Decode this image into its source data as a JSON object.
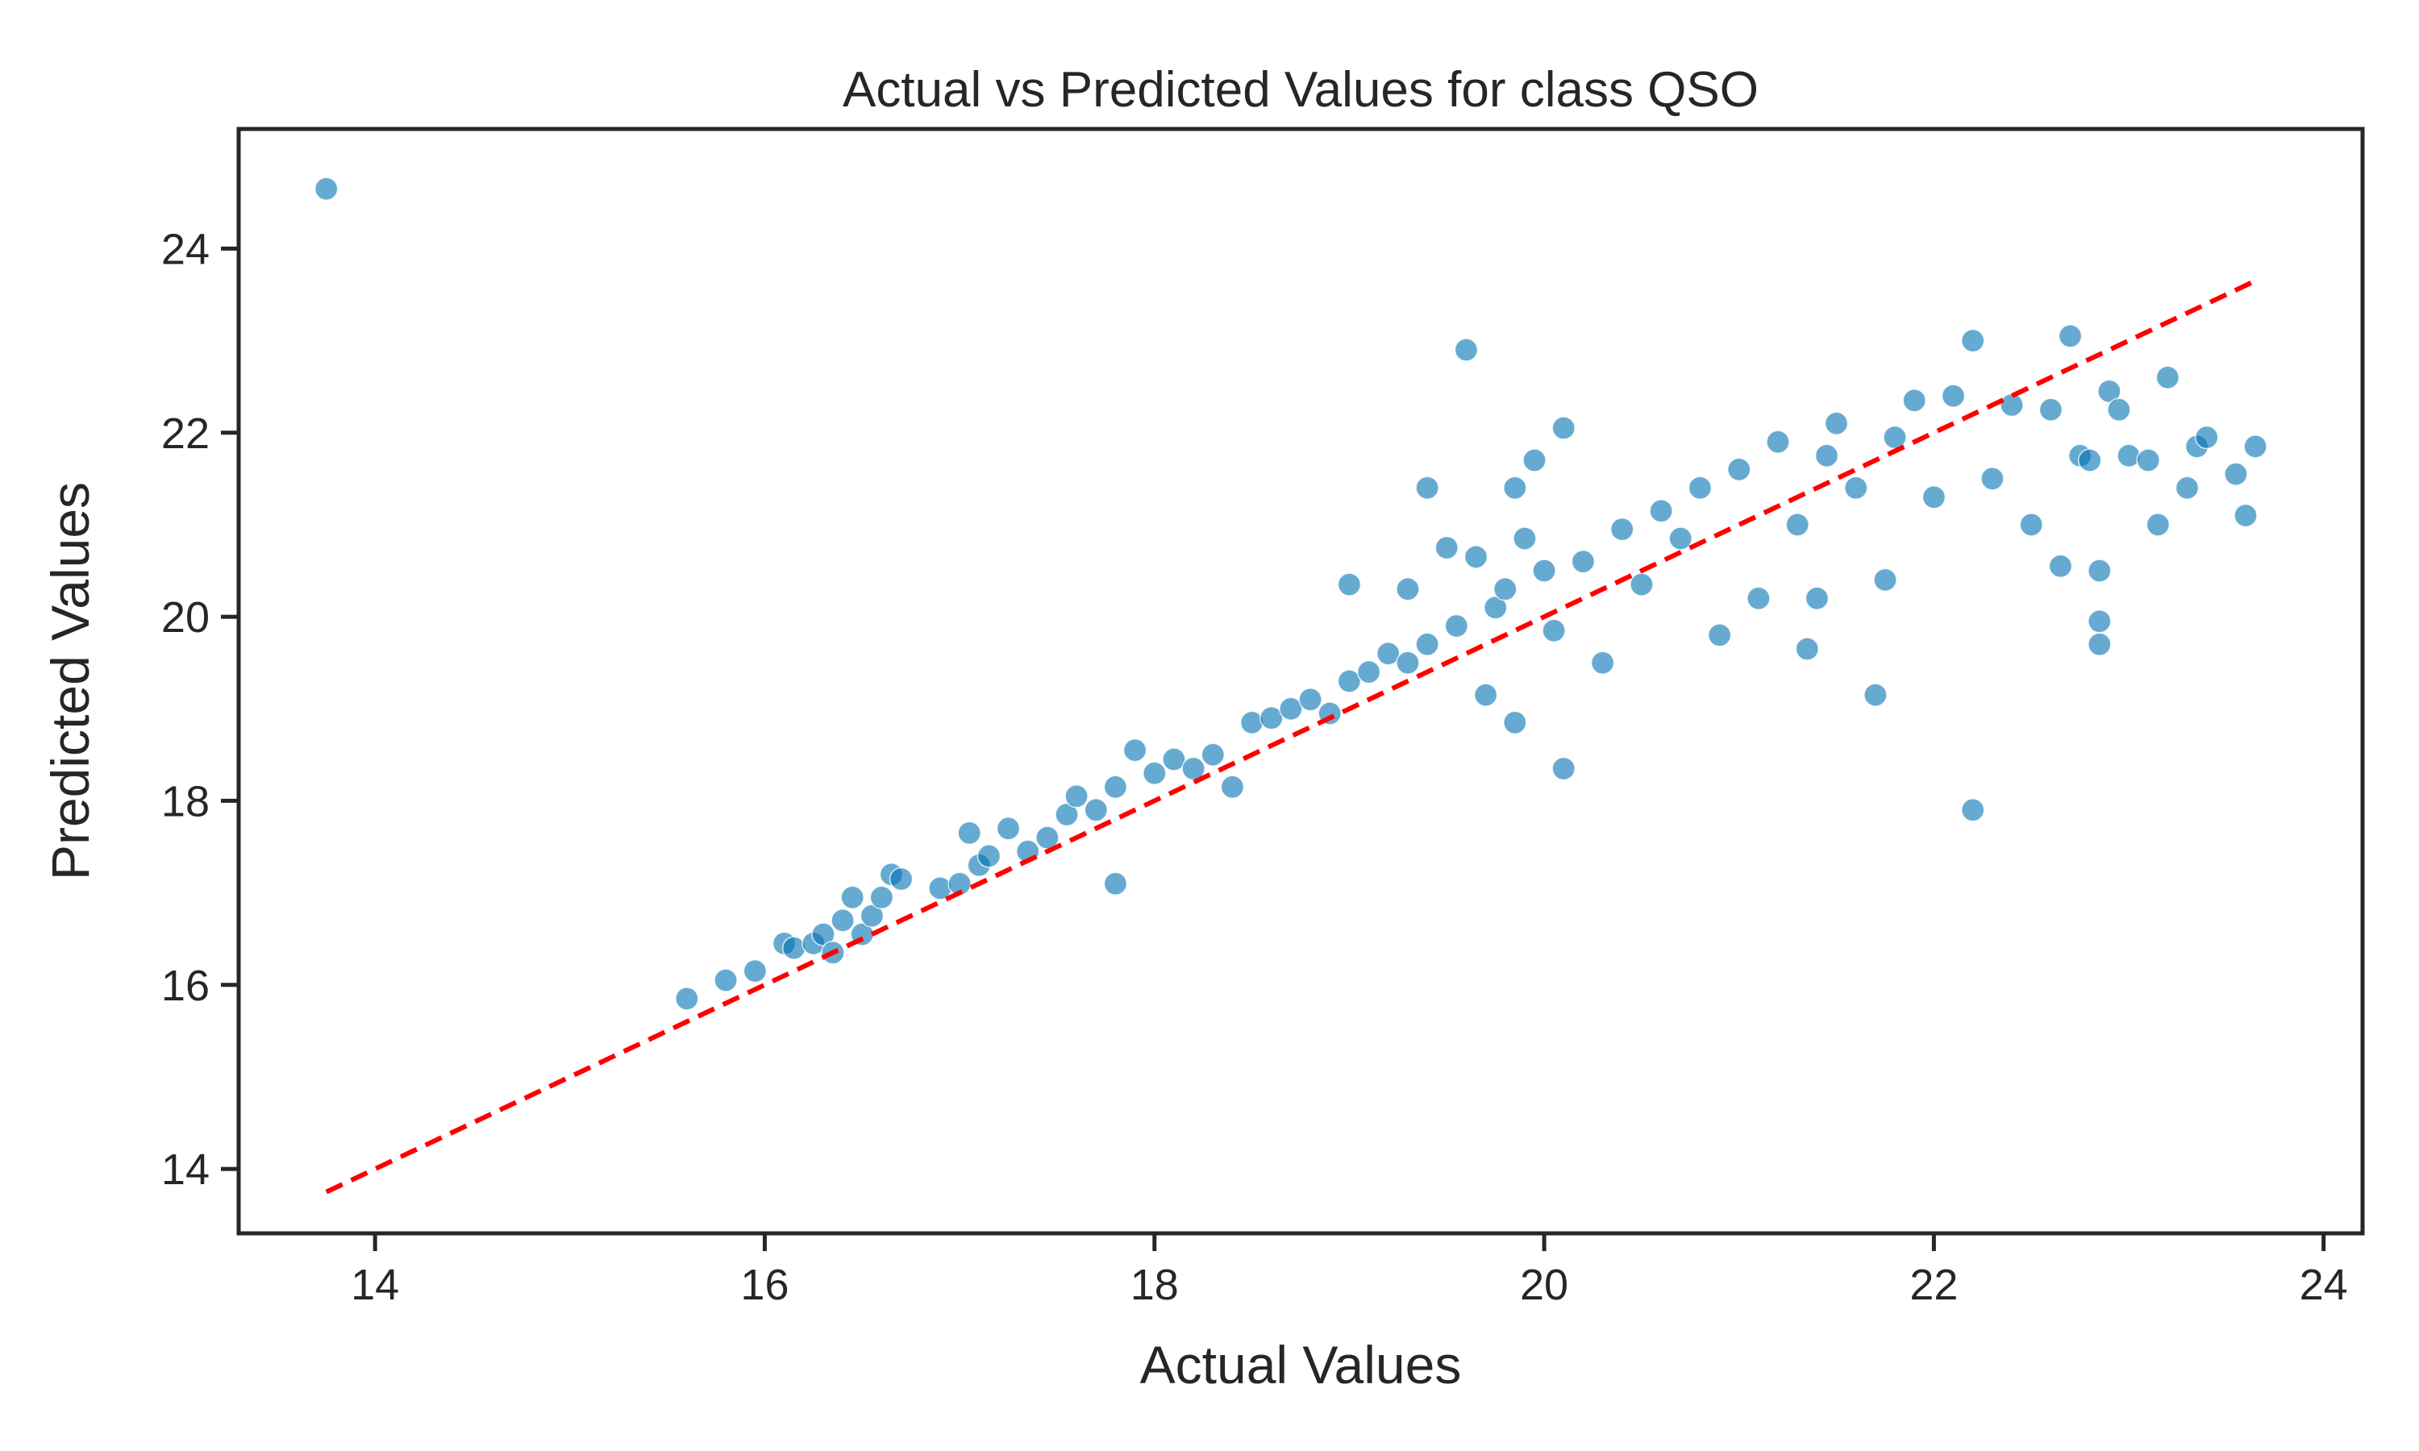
{
  "chart_data": {
    "type": "scatter",
    "title": "Actual vs Predicted Values for class QSO",
    "xlabel": "Actual Values",
    "ylabel": "Predicted Values",
    "xlim": [
      13.3,
      24.2
    ],
    "ylim": [
      13.3,
      25.3
    ],
    "xticks": [
      14,
      16,
      18,
      20,
      22,
      24
    ],
    "yticks": [
      14,
      16,
      18,
      20,
      22,
      24
    ],
    "xtick_labels": [
      "14",
      "16",
      "18",
      "20",
      "22",
      "24"
    ],
    "ytick_labels": [
      "14",
      "16",
      "18",
      "20",
      "22",
      "24"
    ],
    "grid": false,
    "legend": "none",
    "point_color": "#0072B2",
    "reference_line_color": "#ff0000",
    "reference_line": {
      "style": "dashed",
      "from": [
        13.75,
        13.75
      ],
      "to": [
        23.65,
        23.65
      ]
    },
    "series": [
      {
        "points": [
          [
            13.75,
            24.65
          ],
          [
            15.6,
            15.85
          ],
          [
            15.8,
            16.05
          ],
          [
            15.95,
            16.15
          ],
          [
            16.1,
            16.45
          ],
          [
            16.15,
            16.4
          ],
          [
            16.25,
            16.45
          ],
          [
            16.3,
            16.55
          ],
          [
            16.35,
            16.35
          ],
          [
            16.4,
            16.7
          ],
          [
            16.45,
            16.95
          ],
          [
            16.5,
            16.55
          ],
          [
            16.55,
            16.75
          ],
          [
            16.6,
            16.95
          ],
          [
            16.65,
            17.2
          ],
          [
            16.7,
            17.15
          ],
          [
            16.9,
            17.05
          ],
          [
            17.0,
            17.1
          ],
          [
            17.05,
            17.65
          ],
          [
            17.1,
            17.3
          ],
          [
            17.15,
            17.4
          ],
          [
            17.25,
            17.7
          ],
          [
            17.35,
            17.45
          ],
          [
            17.45,
            17.6
          ],
          [
            17.55,
            17.85
          ],
          [
            17.6,
            18.05
          ],
          [
            17.7,
            17.9
          ],
          [
            17.8,
            17.1
          ],
          [
            17.8,
            18.15
          ],
          [
            17.9,
            18.55
          ],
          [
            18.0,
            18.3
          ],
          [
            18.1,
            18.45
          ],
          [
            18.2,
            18.35
          ],
          [
            18.3,
            18.5
          ],
          [
            18.4,
            18.15
          ],
          [
            18.5,
            18.85
          ],
          [
            18.6,
            18.9
          ],
          [
            18.7,
            19.0
          ],
          [
            18.8,
            19.1
          ],
          [
            18.9,
            18.95
          ],
          [
            19.0,
            20.35
          ],
          [
            19.0,
            19.3
          ],
          [
            19.1,
            19.4
          ],
          [
            19.2,
            19.6
          ],
          [
            19.3,
            20.3
          ],
          [
            19.3,
            19.5
          ],
          [
            19.4,
            21.4
          ],
          [
            19.4,
            19.7
          ],
          [
            19.5,
            20.75
          ],
          [
            19.55,
            19.9
          ],
          [
            19.6,
            22.9
          ],
          [
            19.65,
            20.65
          ],
          [
            19.7,
            19.15
          ],
          [
            19.75,
            20.1
          ],
          [
            19.8,
            20.3
          ],
          [
            19.85,
            18.85
          ],
          [
            19.85,
            21.4
          ],
          [
            19.9,
            20.85
          ],
          [
            19.95,
            21.7
          ],
          [
            20.0,
            20.5
          ],
          [
            20.05,
            19.85
          ],
          [
            20.1,
            18.35
          ],
          [
            20.1,
            22.05
          ],
          [
            20.2,
            20.6
          ],
          [
            20.3,
            19.5
          ],
          [
            20.4,
            20.95
          ],
          [
            20.5,
            20.35
          ],
          [
            20.6,
            21.15
          ],
          [
            20.7,
            20.85
          ],
          [
            20.8,
            21.4
          ],
          [
            20.9,
            19.8
          ],
          [
            21.0,
            21.6
          ],
          [
            21.1,
            20.2
          ],
          [
            21.2,
            21.9
          ],
          [
            21.3,
            21.0
          ],
          [
            21.35,
            19.65
          ],
          [
            21.4,
            20.2
          ],
          [
            21.45,
            21.75
          ],
          [
            21.5,
            22.1
          ],
          [
            21.6,
            21.4
          ],
          [
            21.7,
            19.15
          ],
          [
            21.75,
            20.4
          ],
          [
            21.8,
            21.95
          ],
          [
            21.9,
            22.35
          ],
          [
            22.0,
            21.3
          ],
          [
            22.1,
            22.4
          ],
          [
            22.2,
            17.9
          ],
          [
            22.2,
            23.0
          ],
          [
            22.3,
            21.5
          ],
          [
            22.4,
            22.3
          ],
          [
            22.5,
            21.0
          ],
          [
            22.6,
            22.25
          ],
          [
            22.65,
            20.55
          ],
          [
            22.7,
            23.05
          ],
          [
            22.75,
            21.75
          ],
          [
            22.8,
            21.7
          ],
          [
            22.85,
            19.7
          ],
          [
            22.85,
            19.95
          ],
          [
            22.85,
            20.5
          ],
          [
            22.9,
            22.45
          ],
          [
            22.95,
            22.25
          ],
          [
            23.0,
            21.75
          ],
          [
            23.1,
            21.7
          ],
          [
            23.15,
            21.0
          ],
          [
            23.2,
            22.6
          ],
          [
            23.3,
            21.4
          ],
          [
            23.35,
            21.85
          ],
          [
            23.4,
            21.95
          ],
          [
            23.55,
            21.55
          ],
          [
            23.6,
            21.1
          ],
          [
            23.65,
            21.85
          ]
        ]
      }
    ]
  }
}
